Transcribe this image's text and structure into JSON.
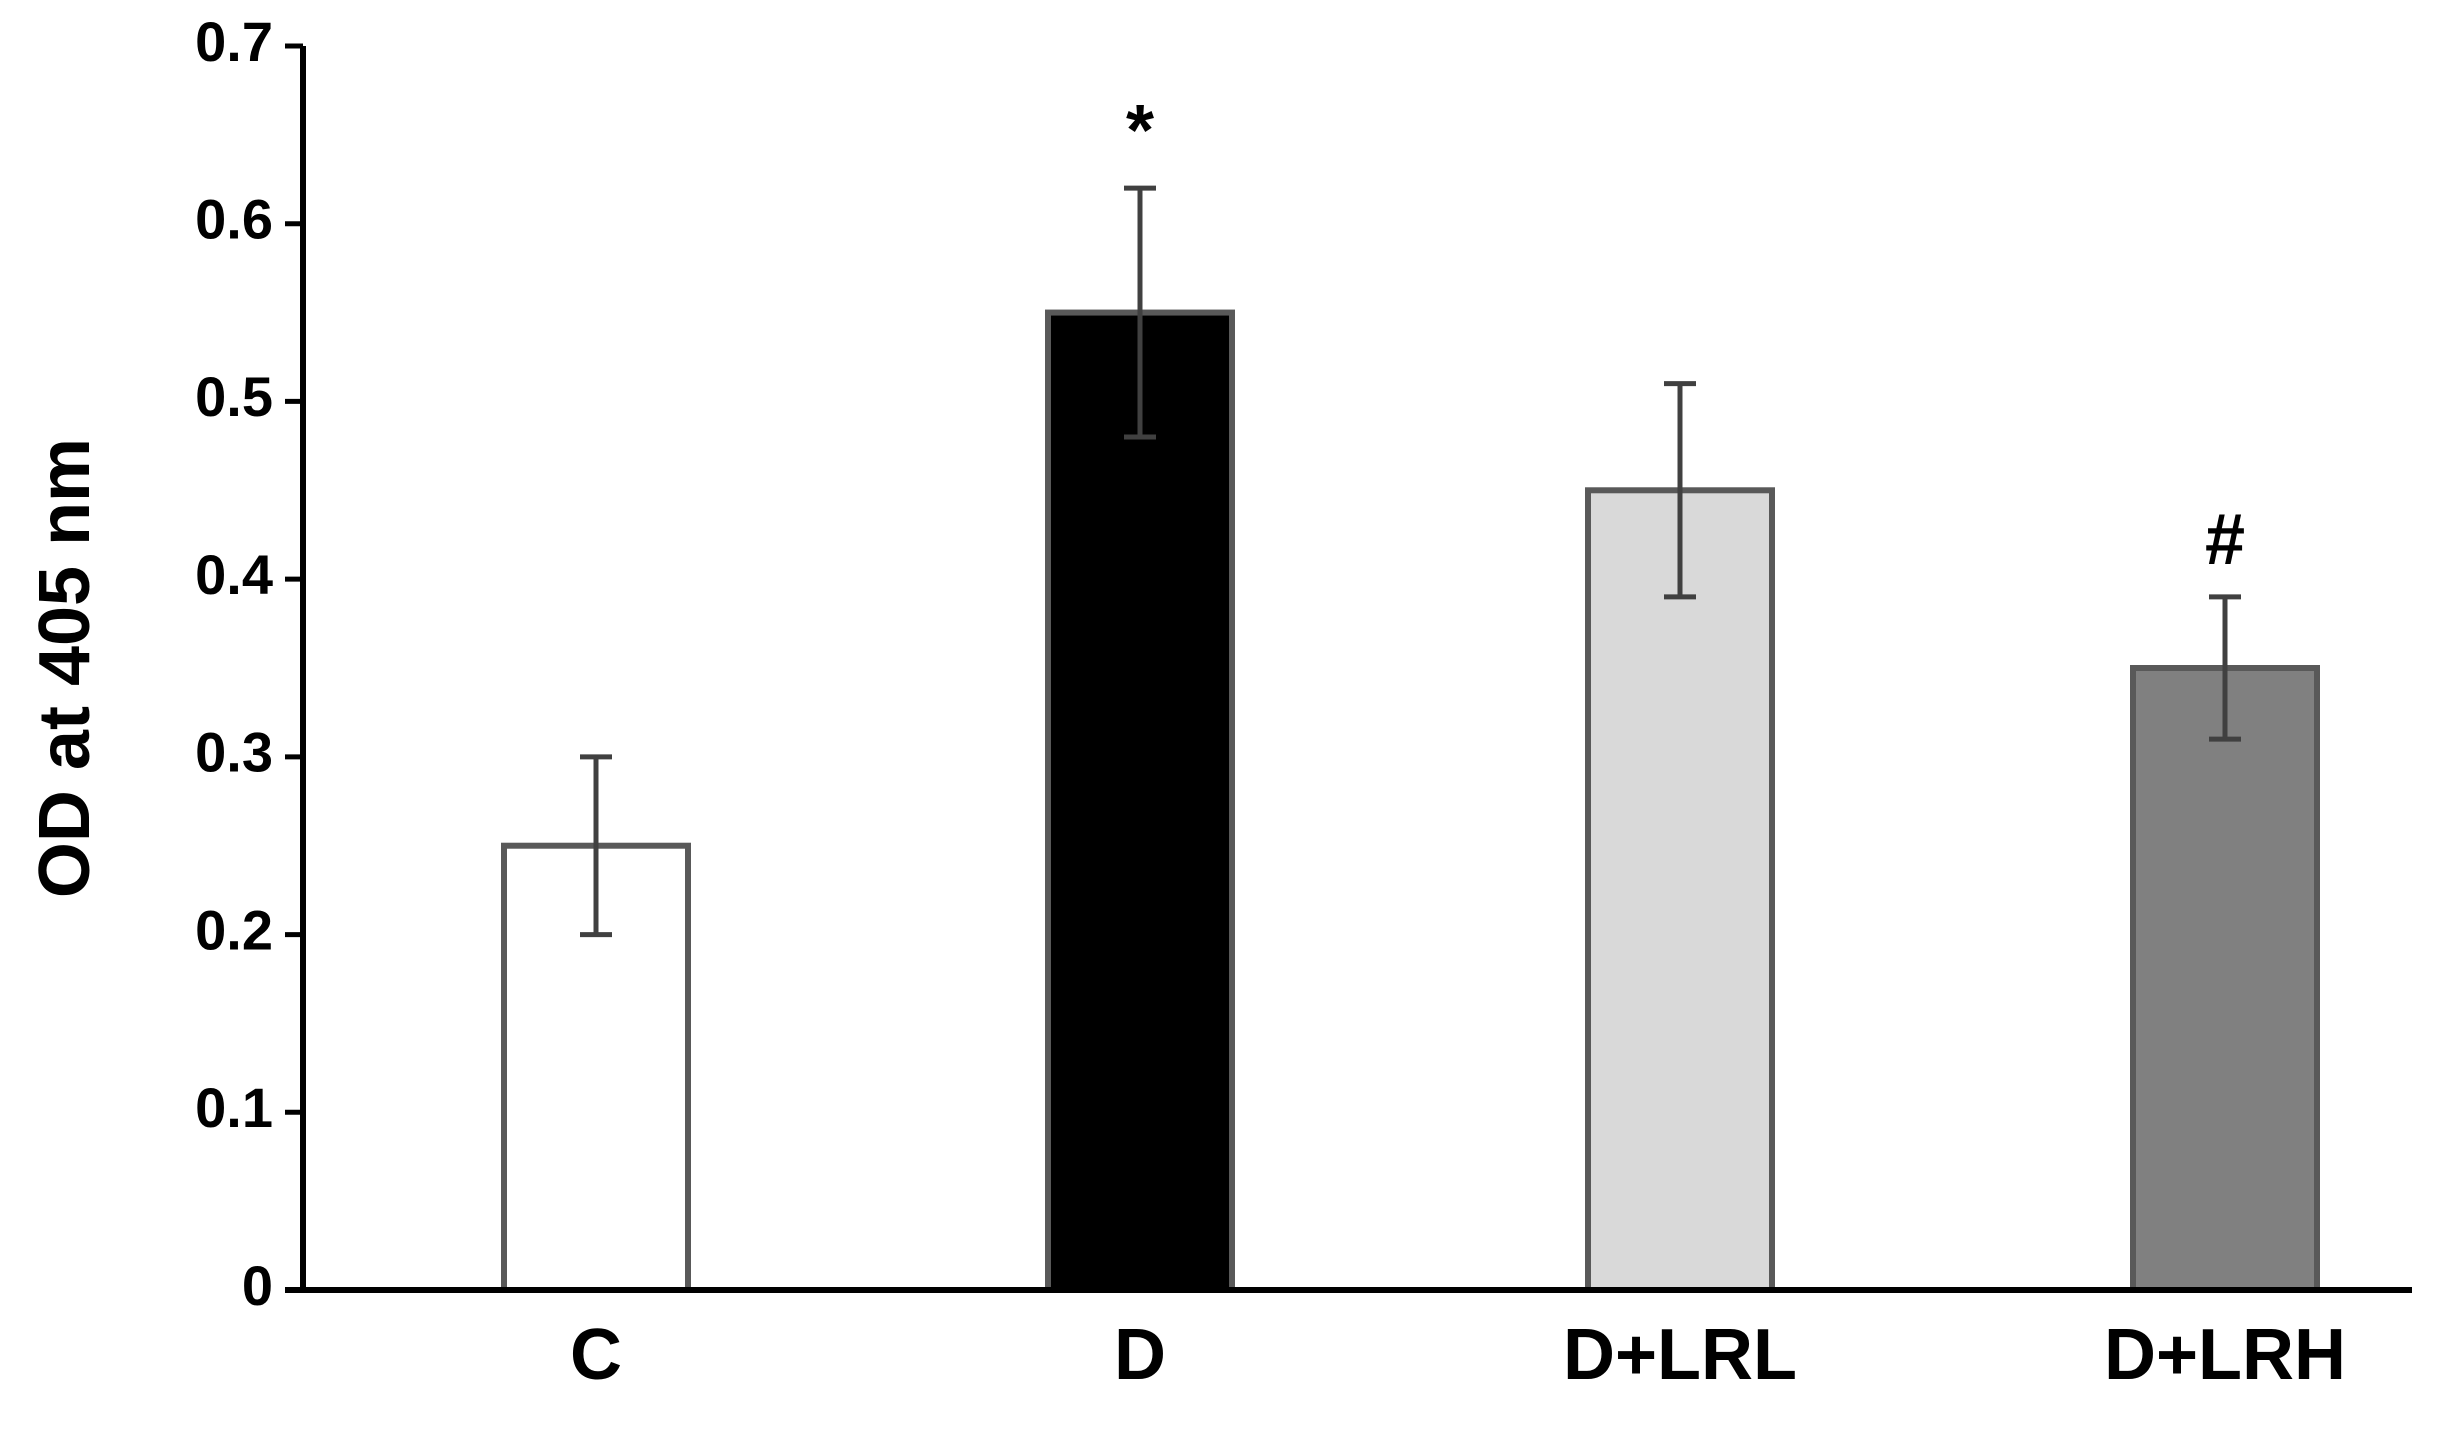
{
  "chart_data": {
    "type": "bar",
    "y_label": "OD at 405 nm",
    "categories": [
      "C",
      "D",
      "D+LRL",
      "D+LRH"
    ],
    "values": [
      0.25,
      0.55,
      0.45,
      0.35
    ],
    "errors": [
      0.05,
      0.07,
      0.06,
      0.04
    ],
    "colors": [
      "#ffffff",
      "#000000",
      "#d9d9d9",
      "#808080"
    ],
    "annotations": [
      null,
      "*",
      null,
      "#"
    ],
    "ylim": [
      0,
      0.7
    ],
    "yticks": [
      0,
      0.1,
      0.2,
      0.3,
      0.4,
      0.5,
      0.6,
      0.7
    ],
    "grid": false
  }
}
